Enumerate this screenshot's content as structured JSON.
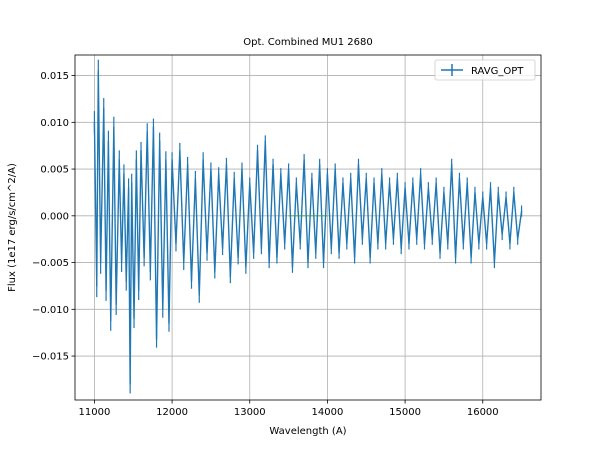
{
  "chart_data": {
    "type": "line",
    "title": "Opt. Combined MU1 2680",
    "xlabel": "Wavelength (A)",
    "ylabel": "Flux (1e17 erg/s/cm^2/A)",
    "xlim": [
      10750,
      16750
    ],
    "ylim": [
      -0.0197,
      0.0172
    ],
    "x_ticks": [
      11000,
      12000,
      13000,
      14000,
      15000,
      16000
    ],
    "x_tick_labels": [
      "11000",
      "12000",
      "13000",
      "14000",
      "15000",
      "16000"
    ],
    "y_ticks": [
      -0.015,
      -0.01,
      -0.005,
      0.0,
      0.005,
      0.01,
      0.015
    ],
    "y_tick_labels": [
      "−0.015",
      "−0.010",
      "−0.005",
      "0.000",
      "0.005",
      "0.010",
      "0.015"
    ],
    "grid": true,
    "legend_position": "top-right",
    "series": [
      {
        "name": "RAVG_OPT",
        "color": "#1f77b4",
        "style": "line with vertical error bars",
        "x": [
          11000,
          11030,
          11050,
          11080,
          11120,
          11150,
          11180,
          11210,
          11250,
          11280,
          11320,
          11350,
          11380,
          11410,
          11440,
          11460,
          11480,
          11510,
          11540,
          11570,
          11600,
          11640,
          11680,
          11720,
          11760,
          11800,
          11840,
          11880,
          11920,
          11960,
          12000,
          12050,
          12100,
          12150,
          12200,
          12250,
          12300,
          12350,
          12400,
          12450,
          12500,
          12550,
          12600,
          12650,
          12700,
          12750,
          12800,
          12850,
          12900,
          12950,
          13000,
          13050,
          13100,
          13150,
          13200,
          13250,
          13300,
          13350,
          13400,
          13450,
          13500,
          13550,
          13600,
          13650,
          13700,
          13750,
          13800,
          13850,
          13900,
          13950,
          14000,
          14050,
          14100,
          14150,
          14200,
          14250,
          14300,
          14350,
          14400,
          14450,
          14500,
          14550,
          14600,
          14650,
          14700,
          14750,
          14800,
          14850,
          14900,
          14950,
          15000,
          15050,
          15100,
          15150,
          15200,
          15250,
          15300,
          15350,
          15400,
          15450,
          15500,
          15550,
          15600,
          15650,
          15700,
          15750,
          15800,
          15850,
          15900,
          15950,
          16000,
          16050,
          16100,
          16150,
          16200,
          16250,
          16300,
          16350,
          16400,
          16450,
          16500
        ],
        "values": [
          0.01,
          -0.0075,
          0.0155,
          -0.005,
          0.0115,
          -0.008,
          0.008,
          -0.0112,
          0.0095,
          -0.0095,
          0.006,
          -0.005,
          0.0045,
          -0.007,
          0.003,
          -0.018,
          0.0035,
          -0.011,
          0.006,
          -0.008,
          0.007,
          -0.0045,
          0.009,
          -0.006,
          0.0095,
          -0.0132,
          0.008,
          -0.01,
          0.006,
          -0.0115,
          0.006,
          -0.003,
          0.007,
          -0.005,
          0.0055,
          -0.007,
          0.004,
          -0.0085,
          0.006,
          -0.004,
          0.005,
          -0.006,
          0.0045,
          -0.0035,
          0.0055,
          -0.0065,
          0.004,
          -0.0045,
          0.005,
          -0.0055,
          0.0035,
          -0.004,
          0.007,
          -0.0035,
          0.008,
          -0.005,
          0.0055,
          -0.0045,
          0.0045,
          -0.003,
          0.005,
          -0.0055,
          0.0035,
          -0.003,
          0.006,
          -0.005,
          0.004,
          -0.004,
          0.0055,
          -0.005,
          0.0045,
          -0.0035,
          0.005,
          -0.004,
          0.0035,
          -0.003,
          0.004,
          -0.0045,
          0.0055,
          -0.0025,
          0.004,
          -0.0045,
          0.0035,
          -0.003,
          0.0045,
          -0.003,
          0.0035,
          -0.0025,
          0.004,
          -0.0035,
          0.003,
          -0.003,
          0.0035,
          -0.0025,
          0.0045,
          -0.003,
          0.003,
          -0.0025,
          0.0035,
          -0.004,
          0.0025,
          -0.003,
          0.0055,
          -0.0045,
          0.004,
          -0.003,
          0.0035,
          -0.0045,
          0.0025,
          -0.003,
          0.002,
          -0.003,
          0.003,
          -0.005,
          0.0025,
          -0.002,
          0.002,
          -0.003,
          0.0025,
          -0.0025,
          0.0005
        ],
        "errors": [
          0.0012,
          0.0012,
          0.0012,
          0.0012,
          0.0011,
          0.0011,
          0.0011,
          0.0011,
          0.0011,
          0.0011,
          0.001,
          0.001,
          0.001,
          0.001,
          0.001,
          0.001,
          0.001,
          0.001,
          0.001,
          0.001,
          0.0009,
          0.0009,
          0.0009,
          0.0009,
          0.0009,
          0.0009,
          0.0009,
          0.0009,
          0.0009,
          0.0009,
          0.0008,
          0.0008,
          0.0008,
          0.0008,
          0.0008,
          0.0008,
          0.0008,
          0.0008,
          0.0008,
          0.0008,
          0.0007,
          0.0007,
          0.0007,
          0.0007,
          0.0007,
          0.0007,
          0.0007,
          0.0007,
          0.0007,
          0.0007,
          0.0006,
          0.0006,
          0.0006,
          0.0006,
          0.0006,
          0.0006,
          0.0006,
          0.0006,
          0.0006,
          0.0006,
          0.0006,
          0.0006,
          0.0006,
          0.0006,
          0.0006,
          0.0006,
          0.0006,
          0.0006,
          0.0006,
          0.0006,
          0.0006,
          0.0006,
          0.0006,
          0.0006,
          0.0006,
          0.0006,
          0.0006,
          0.0006,
          0.0006,
          0.0006,
          0.0006,
          0.0006,
          0.0006,
          0.0006,
          0.0006,
          0.0006,
          0.0006,
          0.0006,
          0.0006,
          0.0006,
          0.0006,
          0.0006,
          0.0006,
          0.0006,
          0.0006,
          0.0006,
          0.0006,
          0.0006,
          0.0006,
          0.0006,
          0.0006,
          0.0006,
          0.0006,
          0.0006,
          0.0006,
          0.0006,
          0.0006,
          0.0006,
          0.0006,
          0.0006,
          0.0006,
          0.0006,
          0.0006,
          0.0006,
          0.0006,
          0.0006,
          0.0006,
          0.0006,
          0.0006,
          0.0006,
          0.0006
        ]
      },
      {
        "color": "#2ca02c",
        "style": "faint horizontal segment",
        "x": [
          13500,
          14000
        ],
        "values": [
          0.0,
          0.0
        ]
      }
    ]
  }
}
